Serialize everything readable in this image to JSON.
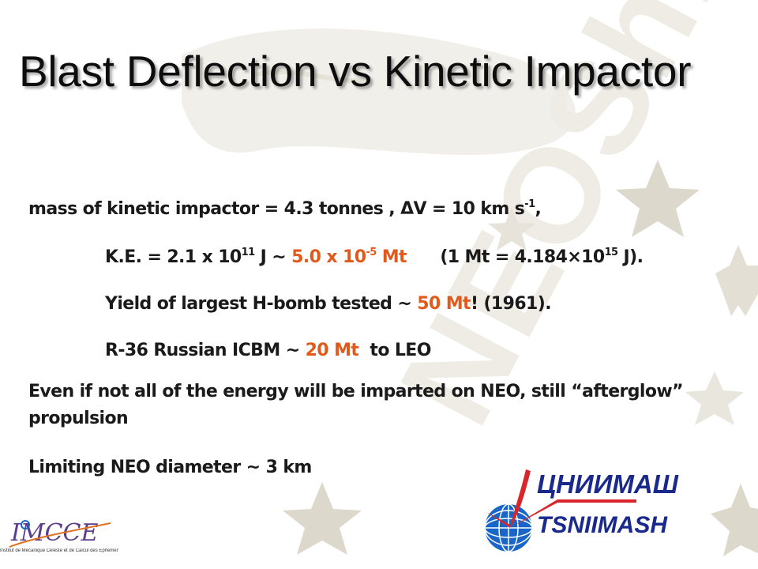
{
  "slide": {
    "title": "Blast Deflection vs Kinetic Impactor",
    "watermark": "NEOShield",
    "line1": {
      "a": "mass of kinetic impactor = 4.3 tonnes , ΔV = 10 km s",
      "sup": "-1",
      "b": ","
    },
    "line2": {
      "a": "K.E. = 2.1 x 10",
      "sup1": "11",
      "b": " J   ~ ",
      "hl1": "5.0 x 10",
      "hl_sup": "-5",
      "hl2": " Mt",
      "c": "      (1 Mt = 4.184×10",
      "sup2": "15",
      "d": " J)."
    },
    "line3": {
      "a": "Yield of largest H-bomb tested ~ ",
      "hl": "50 Mt",
      "b": "! (1961)."
    },
    "line4": {
      "a": "R-36 Russian ICBM ~ ",
      "hl": "20 Mt",
      "b": "  to LEO"
    },
    "line5": "Even if not all of the energy will be imparted on NEO, still “afterglow” propulsion",
    "line6": "Limiting NEO diameter  ~ 3 km"
  },
  "logos": {
    "tsniimash_cyrillic": "ЦНИИМАШ",
    "tsniimash_latin": "TSNIIMASH",
    "imcce": "IMCCE",
    "imcce_caption": "Institut de Mécanique Céleste et de Calcul des Éphémérides"
  },
  "colors": {
    "highlight": "#e2591c",
    "text": "#1a1a1a",
    "star": "#ddd8cc",
    "watermark": "#eeebe3",
    "tsniimash_red": "#d8262b",
    "tsniimash_blue": "#1a2a8c"
  }
}
